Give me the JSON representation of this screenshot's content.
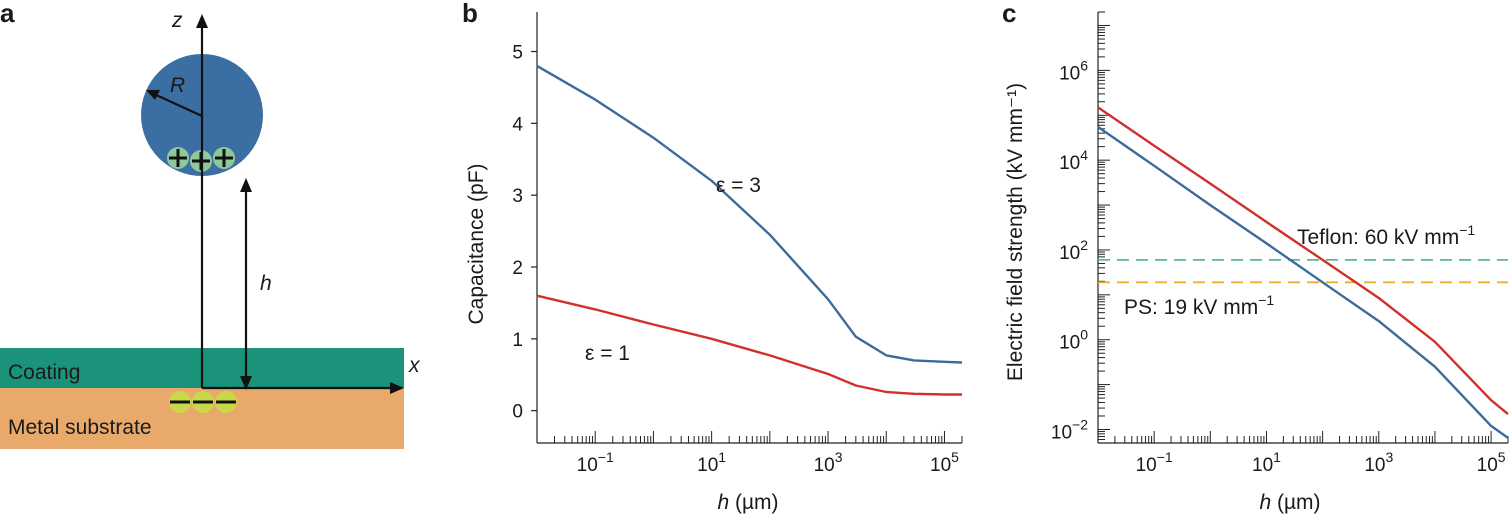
{
  "panels": {
    "a": {
      "label": "a",
      "z_label": "z",
      "x_label": "x",
      "r_label": "R",
      "h_label": "h",
      "coating_label": "Coating",
      "substrate_label": "Metal substrate",
      "colors": {
        "sphere": "#3b6fa3",
        "coating": "#1a937a",
        "substrate": "#e9a96a",
        "plus_charge": "#8fc89a",
        "minus_charge": "#c8d84a"
      }
    },
    "b": {
      "label": "b"
    },
    "c": {
      "label": "c"
    }
  },
  "chart_data": [
    {
      "type": "line",
      "panel": "b",
      "xlabel_italic": "h",
      "xlabel_unit": " (µm)",
      "ylabel": "Capacitance (pF)",
      "xscale": "log",
      "xlim": [
        0.01,
        200000
      ],
      "ylim": [
        -0.45,
        5.55
      ],
      "yticks": [
        "0",
        "1",
        "2",
        "3",
        "4",
        "5"
      ],
      "xticks": [
        {
          "base": "10",
          "exp": "−1"
        },
        {
          "base": "10",
          "exp": "1"
        },
        {
          "base": "10",
          "exp": "3"
        },
        {
          "base": "10",
          "exp": "5"
        }
      ],
      "series": [
        {
          "name": "ε = 3",
          "color": "#3b6c9b",
          "x": [
            0.01,
            0.1,
            1,
            10,
            100,
            1000,
            3000,
            10000,
            30000,
            100000,
            200000
          ],
          "y": [
            4.8,
            4.33,
            3.8,
            3.2,
            2.45,
            1.55,
            1.03,
            0.77,
            0.7,
            0.68,
            0.67
          ]
        },
        {
          "name": "ε = 1",
          "color": "#d0312d",
          "x": [
            0.01,
            0.1,
            1,
            10,
            100,
            1000,
            3000,
            10000,
            30000,
            100000,
            200000
          ],
          "y": [
            1.6,
            1.41,
            1.2,
            1.0,
            0.77,
            0.51,
            0.35,
            0.26,
            0.235,
            0.225,
            0.225
          ]
        }
      ]
    },
    {
      "type": "line",
      "panel": "c",
      "xlabel_italic": "h",
      "xlabel_unit": " (µm)",
      "ylabel": "Electric field strength (kV mm⁻¹)",
      "xscale": "log",
      "yscale": "log",
      "xlim": [
        0.01,
        200000
      ],
      "ylim": [
        0.005,
        20000000
      ],
      "yticks": [
        {
          "base": "10",
          "exp": "−2"
        },
        {
          "base": "10",
          "exp": "0"
        },
        {
          "base": "10",
          "exp": "2"
        },
        {
          "base": "10",
          "exp": "4"
        },
        {
          "base": "10",
          "exp": "6"
        }
      ],
      "xticks": [
        {
          "base": "10",
          "exp": "−1"
        },
        {
          "base": "10",
          "exp": "1"
        },
        {
          "base": "10",
          "exp": "3"
        },
        {
          "base": "10",
          "exp": "5"
        }
      ],
      "series": [
        {
          "name": "ε = 1",
          "color": "#d0312d",
          "x": [
            0.01,
            0.1,
            1,
            10,
            100,
            1000,
            10000,
            100000,
            200000
          ],
          "y": [
            150000,
            21000,
            3000,
            420,
            60,
            8.5,
            0.9,
            0.045,
            0.022
          ]
        },
        {
          "name": "ε = 3",
          "color": "#3b6c9b",
          "x": [
            0.01,
            0.1,
            1,
            10,
            100,
            1000,
            10000,
            100000,
            200000
          ],
          "y": [
            55000,
            7500,
            1000,
            140,
            19,
            2.6,
            0.25,
            0.012,
            0.0065
          ]
        }
      ],
      "reference_lines": [
        {
          "label": "Teflon: 60 kV mm",
          "sup": "−1",
          "value": 60,
          "color": "#5ab89a"
        },
        {
          "label": "PS: 19 kV mm",
          "sup": "−1",
          "value": 19,
          "color": "#e8b030"
        }
      ]
    }
  ]
}
